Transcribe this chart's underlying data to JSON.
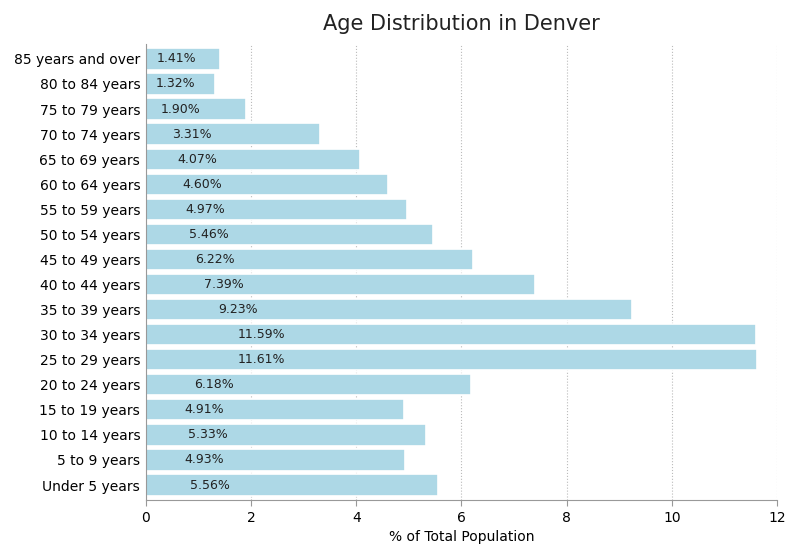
{
  "title": "Age Distribution in Denver",
  "xlabel": "% of Total Population",
  "categories": [
    "85 years and over",
    "80 to 84 years",
    "75 to 79 years",
    "70 to 74 years",
    "65 to 69 years",
    "60 to 64 years",
    "55 to 59 years",
    "50 to 54 years",
    "45 to 49 years",
    "40 to 44 years",
    "35 to 39 years",
    "30 to 34 years",
    "25 to 29 years",
    "20 to 24 years",
    "15 to 19 years",
    "10 to 14 years",
    "5 to 9 years",
    "Under 5 years"
  ],
  "values": [
    1.41,
    1.32,
    1.9,
    3.31,
    4.07,
    4.6,
    4.97,
    5.46,
    6.22,
    7.39,
    9.23,
    11.59,
    11.61,
    6.18,
    4.91,
    5.33,
    4.93,
    5.56
  ],
  "bar_color": "#ADD8E6",
  "bar_edge_color": "white",
  "background_color": "#ffffff",
  "grid_color": "#bbbbbb",
  "xlim": [
    0,
    12
  ],
  "title_fontsize": 15,
  "label_fontsize": 10,
  "tick_fontsize": 10,
  "value_label_fontsize": 9,
  "bar_height": 0.85
}
